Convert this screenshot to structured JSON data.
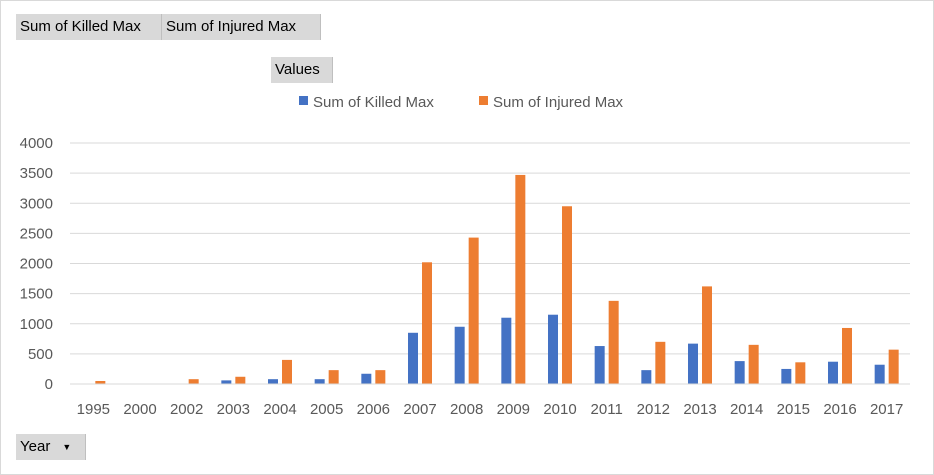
{
  "field_buttons": {
    "killed": "Sum of Killed Max",
    "injured": "Sum of Injured Max",
    "values": "Values",
    "year": "Year"
  },
  "colors": {
    "killed": "#4472c4",
    "injured": "#ed7d31",
    "grid": "#d9d9d9",
    "button": "#d9d9d9"
  },
  "icons": {
    "year_dropdown": "triangle-down"
  },
  "chart_data": {
    "type": "bar",
    "categories": [
      "1995",
      "2000",
      "2002",
      "2003",
      "2004",
      "2005",
      "2006",
      "2007",
      "2008",
      "2009",
      "2010",
      "2011",
      "2012",
      "2013",
      "2014",
      "2015",
      "2016",
      "2017"
    ],
    "series": [
      {
        "name": "Sum of Killed Max",
        "values": [
          0,
          0,
          0,
          60,
          80,
          80,
          170,
          850,
          950,
          1100,
          1150,
          630,
          230,
          670,
          380,
          250,
          370,
          320
        ]
      },
      {
        "name": "Sum of Injured Max",
        "values": [
          50,
          0,
          80,
          120,
          400,
          230,
          230,
          2020,
          2430,
          3470,
          2950,
          1380,
          700,
          1620,
          650,
          360,
          930,
          570
        ]
      }
    ],
    "ylim": [
      0,
      4000
    ],
    "yticks": [
      "0",
      "500",
      "1000",
      "1500",
      "2000",
      "2500",
      "3000",
      "3500",
      "4000"
    ],
    "grid": true,
    "legend_position": "top-center"
  }
}
